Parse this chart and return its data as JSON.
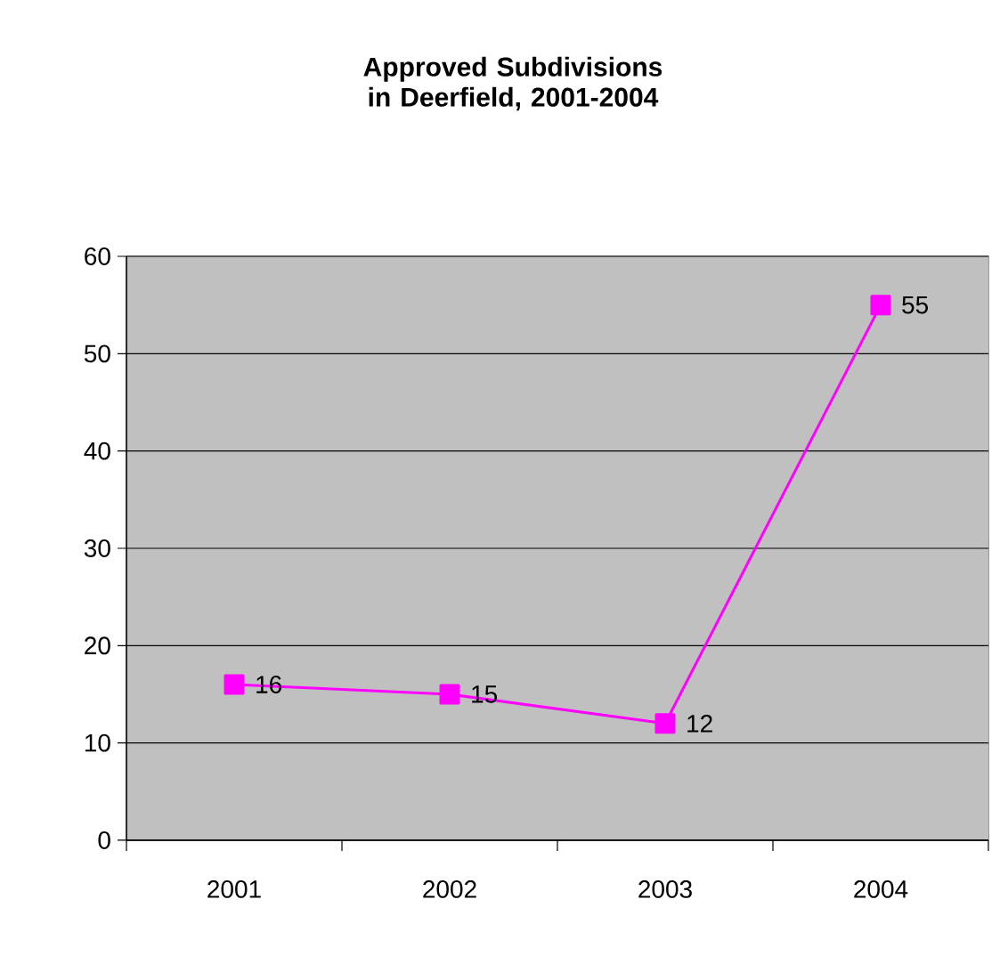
{
  "chart_data": {
    "type": "line",
    "title": "Approved Subdivisions in Deerfield, 2001-2004",
    "categories": [
      "2001",
      "2002",
      "2003",
      "2004"
    ],
    "series": [
      {
        "color": "#ff00ff",
        "values": [
          16,
          15,
          12,
          55
        ]
      }
    ],
    "ylim": [
      0,
      60
    ],
    "yticks": [
      0,
      10,
      20,
      30,
      40,
      50,
      60
    ],
    "grid": "y",
    "marker": "square",
    "line_style": "solid",
    "data_labels": true
  }
}
